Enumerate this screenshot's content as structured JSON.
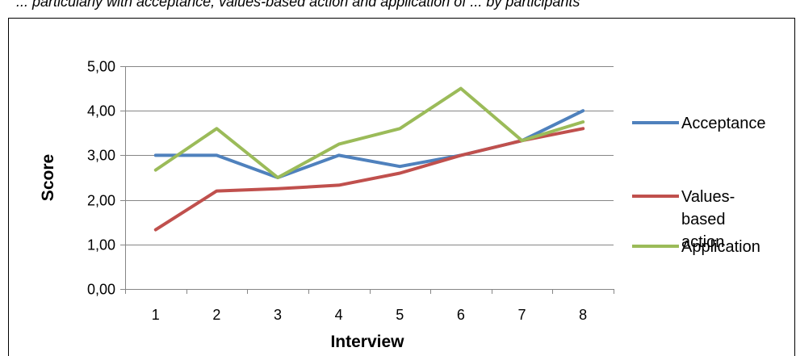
{
  "caption": "... particularly with acceptance, values-based action and application of ... by participants",
  "chart_data": {
    "type": "line",
    "title": "",
    "xlabel": "Interview",
    "ylabel": "Score",
    "categories": [
      "1",
      "2",
      "3",
      "4",
      "5",
      "6",
      "7",
      "8"
    ],
    "ylim": [
      0,
      5
    ],
    "yticks": [
      "0,00",
      "1,00",
      "2,00",
      "3,00",
      "4,00",
      "5,00"
    ],
    "grid": "horizontal",
    "legend_position": "right",
    "series": [
      {
        "name": "Acceptance",
        "color": "#4f81bd",
        "values": [
          3.0,
          3.0,
          2.5,
          3.0,
          2.75,
          3.0,
          3.33,
          4.0
        ]
      },
      {
        "name": "Values-based action",
        "legend_lines": [
          "Values-",
          "based",
          "action"
        ],
        "color": "#c0504d",
        "values": [
          1.33,
          2.2,
          2.25,
          2.33,
          2.6,
          3.0,
          3.33,
          3.6
        ]
      },
      {
        "name": "Application",
        "color": "#9bbb59",
        "values": [
          2.67,
          3.6,
          2.5,
          3.25,
          3.6,
          4.5,
          3.33,
          3.75
        ]
      }
    ]
  }
}
